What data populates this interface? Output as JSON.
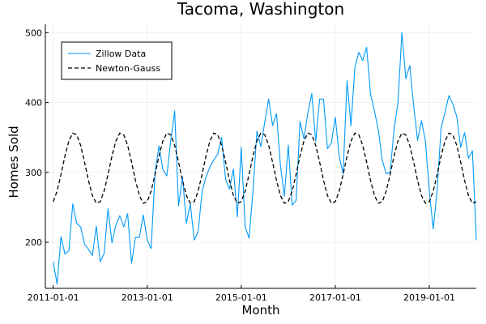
{
  "chart_data": {
    "type": "line",
    "title": "Tacoma, Washington",
    "xlabel": "Month",
    "ylabel": "Homes Sold",
    "x_ticks": [
      "2011-01-01",
      "2013-01-01",
      "2015-01-01",
      "2017-01-01",
      "2019-01-01"
    ],
    "y_ticks": [
      200,
      300,
      400,
      500
    ],
    "xlim": [
      "2010-11-01",
      "2019-12-31"
    ],
    "ylim": [
      134,
      512
    ],
    "grid": true,
    "legend_position": "top-left",
    "series": [
      {
        "name": "Zillow Data",
        "color": "#009af9",
        "line_style": "solid",
        "start": "2011-01",
        "frequency": "monthly",
        "values": [
          172,
          140,
          208,
          183,
          188,
          255,
          227,
          222,
          197,
          190,
          181,
          223,
          172,
          184,
          248,
          199,
          225,
          238,
          222,
          241,
          170,
          207,
          207,
          239,
          203,
          191,
          300,
          338,
          304,
          295,
          345,
          388,
          252,
          294,
          227,
          255,
          203,
          215,
          273,
          293,
          308,
          318,
          326,
          350,
          290,
          276,
          305,
          236,
          336,
          222,
          206,
          274,
          359,
          337,
          372,
          405,
          367,
          384,
          310,
          266,
          339,
          253,
          260,
          373,
          348,
          385,
          413,
          344,
          405,
          405,
          334,
          342,
          379,
          323,
          298,
          431,
          367,
          450,
          472,
          460,
          479,
          412,
          388,
          360,
          317,
          298,
          300,
          362,
          400,
          500,
          434,
          453,
          396,
          346,
          374,
          345,
          273,
          219,
          275,
          363,
          386,
          410,
          398,
          380,
          336,
          357,
          320,
          331,
          203
        ]
      },
      {
        "name": "Newton-Gauss",
        "color": "#000000",
        "line_style": "dashed",
        "start": "2011-01",
        "frequency": "monthly",
        "model": {
          "mean": 306,
          "amplitude": 51,
          "period_months": 12,
          "peak_month_offset": 6
        },
        "values": []
      }
    ]
  }
}
